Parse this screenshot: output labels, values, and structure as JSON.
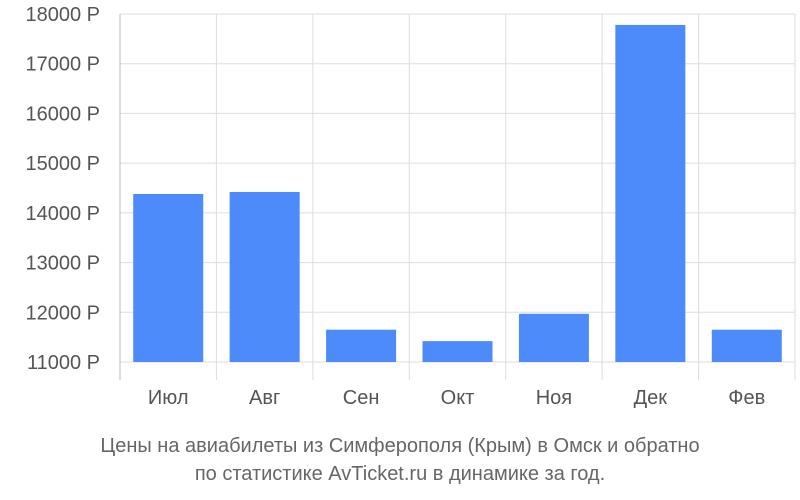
{
  "chart_data": {
    "type": "bar",
    "categories": [
      "Июл",
      "Авг",
      "Сен",
      "Окт",
      "Ноя",
      "Дек",
      "Фев"
    ],
    "values": [
      14380,
      14420,
      11650,
      11420,
      11970,
      17780,
      11650
    ],
    "ylim": [
      11000,
      18000
    ],
    "yticks": [
      11000,
      12000,
      13000,
      14000,
      15000,
      16000,
      17000,
      18000
    ],
    "ytick_labels": [
      "11000 Р",
      "12000 Р",
      "13000 Р",
      "14000 Р",
      "15000 Р",
      "16000 Р",
      "17000 Р",
      "18000 Р"
    ],
    "bar_color": "#4d8bfb",
    "grid": true,
    "grid_color": "#dddddd",
    "axis_color": "#bbbbbb"
  },
  "caption": {
    "line1": "Цены на авиабилеты из Симферополя (Крым) в Омск и обратно",
    "line2": "по статистике AvTicket.ru в динамике за год."
  }
}
